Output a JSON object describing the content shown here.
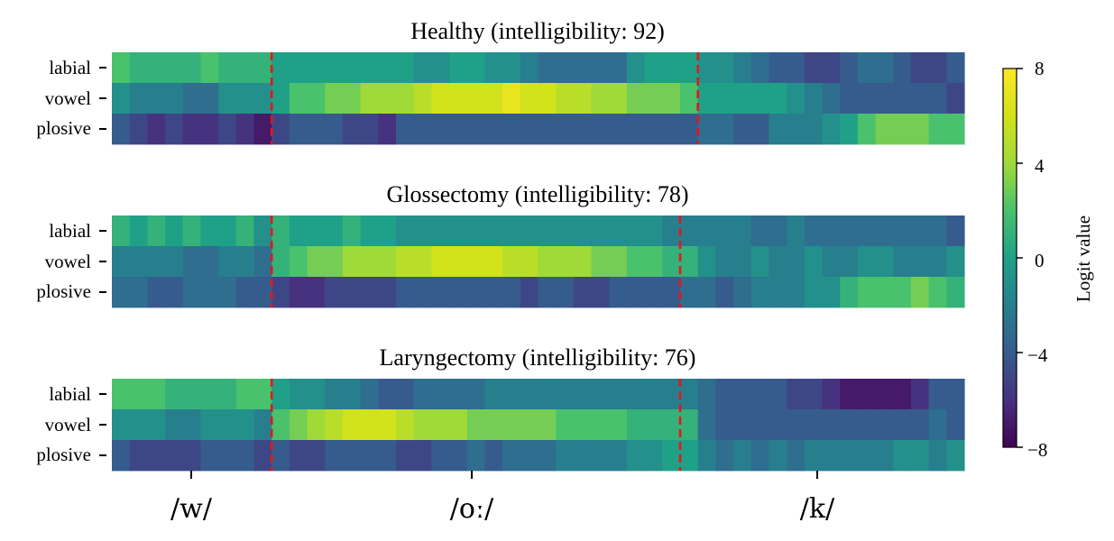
{
  "chart_data": {
    "type": "heatmap",
    "panels": [
      {
        "title": "Healthy (intelligibility: 92)",
        "rows": [
          "labial",
          "vowel",
          "plosive"
        ],
        "boundaries": [
          9,
          33
        ],
        "cells": [
          [
            2,
            1,
            1,
            1,
            1,
            2,
            1,
            1,
            1,
            0,
            0,
            0,
            0,
            0,
            0,
            0,
            0,
            -1,
            -1,
            0,
            0,
            -1,
            -1,
            -2,
            -3,
            -3,
            -3,
            -3,
            -3,
            -1,
            0,
            0,
            0,
            -1,
            -1,
            -2,
            -3,
            -4,
            -4,
            -5,
            -5,
            -4,
            -3,
            -3,
            -4,
            -5,
            -5,
            -4
          ],
          [
            -1,
            -2,
            -2,
            -2,
            -3,
            -3,
            -1,
            -1,
            -1,
            0,
            2,
            2,
            3,
            3,
            4,
            4,
            4,
            5,
            6,
            6,
            6,
            6,
            7,
            6,
            6,
            5,
            5,
            4,
            4,
            3,
            3,
            3,
            2,
            0,
            0,
            0,
            0,
            0,
            -1,
            -2,
            -3,
            -4,
            -4,
            -4,
            -4,
            -4,
            -4,
            -5
          ],
          [
            -4,
            -5,
            -6,
            -5,
            -6,
            -6,
            -5,
            -6,
            -7,
            -5,
            -4,
            -4,
            -4,
            -5,
            -5,
            -6,
            -4,
            -4,
            -4,
            -4,
            -4,
            -4,
            -4,
            -4,
            -4,
            -4,
            -4,
            -4,
            -4,
            -4,
            -4,
            -4,
            -4,
            -3,
            -3,
            -4,
            -4,
            -2,
            -2,
            -2,
            -1,
            0,
            2,
            3,
            3,
            3,
            2,
            2
          ]
        ]
      },
      {
        "title": "Glossectomy (intelligibility: 78)",
        "rows": [
          "labial",
          "vowel",
          "plosive"
        ],
        "boundaries": [
          9,
          32
        ],
        "cells": [
          [
            1,
            0,
            1,
            0,
            1,
            0,
            0,
            1,
            -1,
            1,
            0,
            0,
            0,
            1,
            0,
            0,
            -1,
            -1,
            -1,
            -1,
            -1,
            -1,
            -1,
            -1,
            -1,
            -1,
            -1,
            -1,
            -1,
            -1,
            -1,
            -2,
            -2,
            -2,
            -2,
            -2,
            -3,
            -3,
            -2,
            -3,
            -3,
            -3,
            -3,
            -3,
            -3,
            -3,
            -3,
            -4
          ],
          [
            -2,
            -2,
            -2,
            -2,
            -3,
            -3,
            -2,
            -2,
            -3,
            1,
            2,
            3,
            3,
            4,
            4,
            4,
            5,
            5,
            6,
            6,
            6,
            6,
            5,
            5,
            4,
            4,
            4,
            3,
            3,
            2,
            2,
            1,
            1,
            -1,
            -2,
            -2,
            -1,
            -2,
            -2,
            -1,
            -2,
            -2,
            -1,
            -1,
            -2,
            -2,
            -2,
            -1
          ],
          [
            -3,
            -3,
            -4,
            -4,
            -3,
            -3,
            -3,
            -4,
            -4,
            -5,
            -6,
            -6,
            -5,
            -5,
            -5,
            -5,
            -4,
            -4,
            -4,
            -4,
            -4,
            -4,
            -4,
            -5,
            -4,
            -4,
            -5,
            -5,
            -4,
            -4,
            -4,
            -4,
            -3,
            -3,
            -4,
            -3,
            -2,
            -2,
            -2,
            -1,
            -1,
            1,
            2,
            2,
            2,
            3,
            2,
            1
          ]
        ]
      },
      {
        "title": "Laryngectomy (intelligibility: 76)",
        "rows": [
          "labial",
          "vowel",
          "plosive"
        ],
        "boundaries": [
          9,
          32
        ],
        "cells": [
          [
            2,
            2,
            2,
            1,
            1,
            1,
            1,
            2,
            2,
            0,
            -1,
            -1,
            -2,
            -2,
            -3,
            -4,
            -4,
            -3,
            -3,
            -3,
            -3,
            -2,
            -2,
            -2,
            -2,
            -2,
            -2,
            -2,
            -2,
            -2,
            -2,
            -2,
            -2,
            -3,
            -4,
            -4,
            -4,
            -4,
            -5,
            -5,
            -6,
            -7,
            -7,
            -7,
            -7,
            -6,
            -4,
            -4
          ],
          [
            -1,
            -1,
            -1,
            -2,
            -2,
            -1,
            -1,
            -1,
            -2,
            2,
            3,
            4,
            5,
            6,
            6,
            6,
            5,
            4,
            4,
            4,
            3,
            3,
            3,
            3,
            3,
            2,
            2,
            2,
            2,
            1,
            1,
            1,
            1,
            -3,
            -4,
            -4,
            -4,
            -4,
            -4,
            -4,
            -4,
            -4,
            -4,
            -4,
            -4,
            -4,
            -3,
            -4
          ],
          [
            -4,
            -5,
            -5,
            -5,
            -5,
            -4,
            -4,
            -4,
            -5,
            -4,
            -5,
            -5,
            -4,
            -4,
            -4,
            -4,
            -5,
            -5,
            -4,
            -4,
            -3,
            -4,
            -3,
            -3,
            -3,
            -2,
            -2,
            -2,
            -2,
            -1,
            -1,
            0,
            0,
            -2,
            -3,
            -2,
            -3,
            -2,
            -3,
            -2,
            -2,
            -2,
            -2,
            -2,
            -1,
            -1,
            -2,
            -1
          ]
        ]
      }
    ],
    "x_tick_labels": [
      "/w/",
      "/oː/",
      "/k/"
    ],
    "colorbar": {
      "label": "Logit value",
      "range": [
        -8,
        8
      ],
      "ticks": [
        "8",
        "4",
        "0",
        "−4",
        "−8"
      ],
      "colormap": "viridis"
    },
    "boundary_color": "#e8141b"
  }
}
